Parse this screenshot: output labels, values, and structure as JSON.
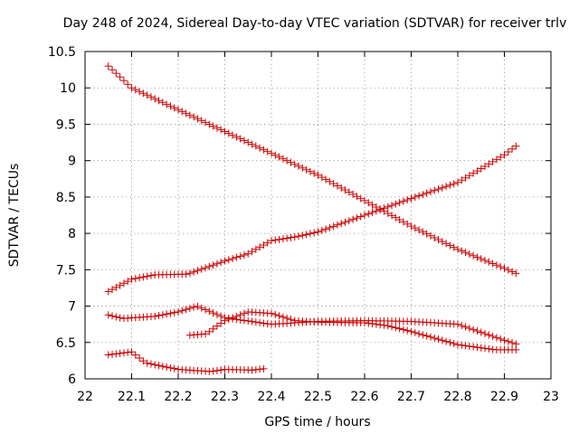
{
  "chart_data": {
    "type": "scatter",
    "title": "Day 248 of 2024, Sidereal Day-to-day VTEC variation (SDTVAR) for receiver trlv",
    "xlabel": "GPS time / hours",
    "ylabel": "SDTVAR / TECUs",
    "xlim": [
      22,
      23
    ],
    "ylim": [
      6,
      10.5
    ],
    "xticks": [
      "22",
      "22.1",
      "22.2",
      "22.3",
      "22.4",
      "22.5",
      "22.6",
      "22.7",
      "22.8",
      "22.9",
      "23"
    ],
    "yticks": [
      "6",
      "6.5",
      "7",
      "7.5",
      "8",
      "8.5",
      "9",
      "9.5",
      "10",
      "10.5"
    ],
    "grid": true,
    "marker": "plus",
    "color": "#cc0000",
    "series": [
      {
        "name": "descending",
        "knots": [
          [
            22.05,
            10.3
          ],
          [
            22.1,
            10.0
          ],
          [
            22.2,
            9.7
          ],
          [
            22.3,
            9.4
          ],
          [
            22.4,
            9.1
          ],
          [
            22.5,
            8.8
          ],
          [
            22.6,
            8.45
          ],
          [
            22.7,
            8.1
          ],
          [
            22.8,
            7.78
          ],
          [
            22.9,
            7.52
          ],
          [
            22.925,
            7.45
          ]
        ]
      },
      {
        "name": "ascending",
        "knots": [
          [
            22.05,
            7.2
          ],
          [
            22.1,
            7.37
          ],
          [
            22.15,
            7.43
          ],
          [
            22.22,
            7.44
          ],
          [
            22.3,
            7.62
          ],
          [
            22.35,
            7.72
          ],
          [
            22.4,
            7.9
          ],
          [
            22.45,
            7.95
          ],
          [
            22.5,
            8.02
          ],
          [
            22.6,
            8.25
          ],
          [
            22.7,
            8.48
          ],
          [
            22.8,
            8.7
          ],
          [
            22.9,
            9.08
          ],
          [
            22.925,
            9.2
          ]
        ]
      },
      {
        "name": "middle",
        "knots": [
          [
            22.05,
            6.88
          ],
          [
            22.08,
            6.83
          ],
          [
            22.15,
            6.86
          ],
          [
            22.2,
            6.92
          ],
          [
            22.24,
            7.0
          ],
          [
            22.3,
            6.84
          ],
          [
            22.4,
            6.75
          ],
          [
            22.5,
            6.79
          ],
          [
            22.6,
            6.8
          ],
          [
            22.7,
            6.79
          ],
          [
            22.8,
            6.75
          ],
          [
            22.9,
            6.53
          ],
          [
            22.925,
            6.48
          ]
        ]
      },
      {
        "name": "hump",
        "knots": [
          [
            22.225,
            6.6
          ],
          [
            22.26,
            6.62
          ],
          [
            22.3,
            6.8
          ],
          [
            22.35,
            6.92
          ],
          [
            22.4,
            6.9
          ],
          [
            22.45,
            6.8
          ],
          [
            22.5,
            6.78
          ],
          [
            22.6,
            6.77
          ],
          [
            22.65,
            6.73
          ],
          [
            22.7,
            6.65
          ],
          [
            22.8,
            6.47
          ],
          [
            22.88,
            6.4
          ],
          [
            22.925,
            6.4
          ]
        ]
      },
      {
        "name": "low",
        "knots": [
          [
            22.05,
            6.33
          ],
          [
            22.1,
            6.37
          ],
          [
            22.13,
            6.22
          ],
          [
            22.2,
            6.13
          ],
          [
            22.27,
            6.1
          ],
          [
            22.3,
            6.13
          ],
          [
            22.36,
            6.12
          ],
          [
            22.385,
            6.14
          ]
        ]
      }
    ]
  }
}
